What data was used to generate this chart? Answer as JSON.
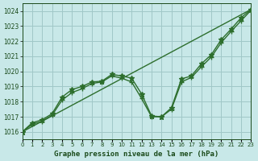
{
  "title": "Graphe pression niveau de la mer (hPa)",
  "bg_color": "#c8e8e8",
  "grid_color": "#a0c8c8",
  "line_color": "#2d6e2d",
  "text_color": "#1a4a1a",
  "xlim": [
    0,
    23
  ],
  "ylim": [
    1015.5,
    1024.5
  ],
  "yticks": [
    1016,
    1017,
    1018,
    1019,
    1020,
    1021,
    1022,
    1023,
    1024
  ],
  "xticks": [
    0,
    1,
    2,
    3,
    4,
    5,
    6,
    7,
    8,
    9,
    10,
    11,
    12,
    13,
    14,
    15,
    16,
    17,
    18,
    19,
    20,
    21,
    22,
    23
  ],
  "series1_x": [
    0,
    1,
    2,
    3,
    4,
    5,
    6,
    7,
    8,
    9,
    10,
    11,
    12,
    13,
    14,
    15,
    16,
    17,
    18,
    19,
    20,
    21,
    22,
    23
  ],
  "series1_y": [
    1016.0,
    1016.6,
    1016.8,
    1017.2,
    1018.3,
    1018.8,
    1019.0,
    1019.3,
    1019.35,
    1019.8,
    1019.7,
    1019.55,
    1018.5,
    1017.05,
    1017.0,
    1017.6,
    1019.5,
    1019.7,
    1020.5,
    1021.1,
    1022.1,
    1022.8,
    1023.55,
    1024.1
  ],
  "series2_x": [
    0,
    1,
    2,
    3,
    4,
    5,
    6,
    7,
    8,
    9,
    10,
    11,
    12,
    13,
    14,
    15,
    16,
    17,
    18,
    19,
    20,
    21,
    22,
    23
  ],
  "series2_y": [
    1016.0,
    1016.5,
    1016.7,
    1017.1,
    1018.1,
    1018.6,
    1018.85,
    1019.2,
    1019.3,
    1019.7,
    1019.55,
    1019.3,
    1018.2,
    1017.0,
    1017.0,
    1017.5,
    1019.3,
    1019.6,
    1020.3,
    1020.95,
    1021.9,
    1022.65,
    1023.35,
    1024.05
  ],
  "series3_x": [
    0,
    23
  ],
  "series3_y": [
    1016.0,
    1024.1
  ],
  "marker_size": 3,
  "line_width": 1.0
}
